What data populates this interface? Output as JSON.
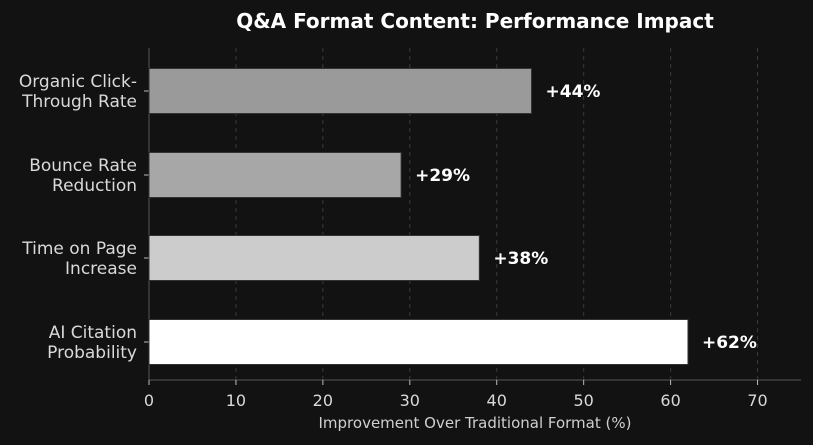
{
  "chart_data": {
    "type": "bar",
    "orientation": "horizontal",
    "title": "Q&A Format Content: Performance Impact",
    "xlabel": "Improvement Over Traditional Format (%)",
    "ylabel": "",
    "xlim": [
      0,
      75
    ],
    "xticks": [
      0,
      10,
      20,
      30,
      40,
      50,
      60,
      70
    ],
    "grid": true,
    "categories": [
      [
        "Organic Click-",
        "Through Rate"
      ],
      [
        "Bounce Rate",
        "Reduction"
      ],
      [
        "Time on Page",
        "Increase"
      ],
      [
        "AI Citation",
        "Probability"
      ]
    ],
    "values": [
      44,
      29,
      38,
      62
    ],
    "data_labels": [
      "+44%",
      "+29%",
      "+38%",
      "+62%"
    ],
    "colors": [
      "#9a9a9a",
      "#a7a7a7",
      "#cccccc",
      "#ffffff"
    ]
  },
  "theme": {
    "background": "#121212",
    "grid_color": "#3a3a3a",
    "axis_color": "#555555",
    "bar_edge": "#333333"
  }
}
